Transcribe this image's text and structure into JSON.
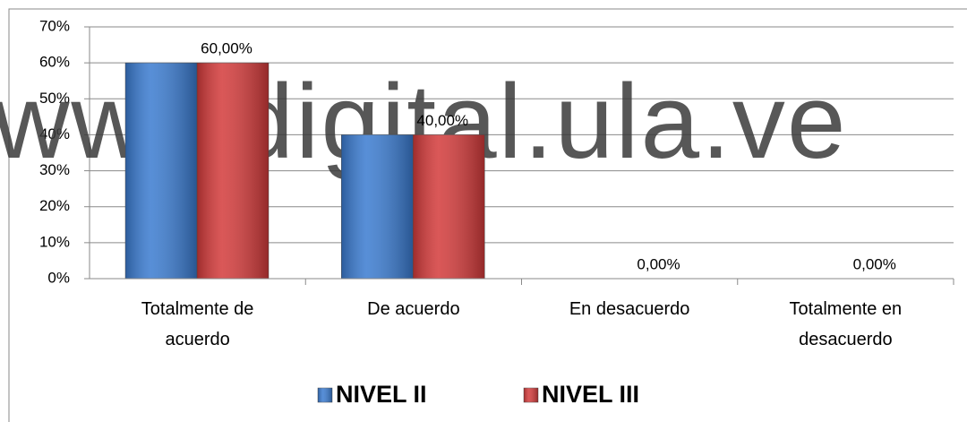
{
  "chart_data": {
    "type": "bar",
    "categories": [
      "Totalmente de acuerdo",
      "De acuerdo",
      "En desacuerdo",
      "Totalmente en desacuerdo"
    ],
    "series": [
      {
        "name": "NIVEL II",
        "color": "#3a7bd0",
        "values": [
          60,
          40,
          0,
          0
        ],
        "value_labels": [
          "60,00%",
          "40,00%",
          "0,00%",
          "0,00%"
        ]
      },
      {
        "name": "NIVEL III",
        "color": "#d33a3a",
        "values": [
          60,
          40,
          0,
          0
        ]
      }
    ],
    "ylim": [
      0,
      70
    ],
    "yticks": [
      {
        "value": 0,
        "label": "0%"
      },
      {
        "value": 10,
        "label": "10%"
      },
      {
        "value": 20,
        "label": "20%"
      },
      {
        "value": 30,
        "label": "30%"
      },
      {
        "value": 40,
        "label": "40%"
      },
      {
        "value": 50,
        "label": "50%"
      },
      {
        "value": 60,
        "label": "60%"
      },
      {
        "value": 70,
        "label": "70%"
      }
    ],
    "grid": true,
    "legend": "bottom",
    "watermark": "www.bdigital.ula.ve"
  }
}
